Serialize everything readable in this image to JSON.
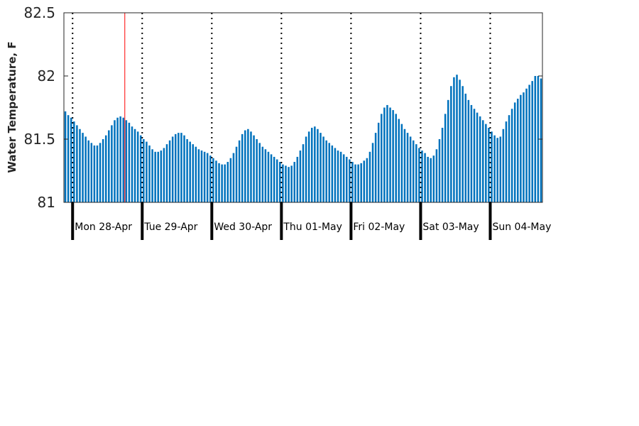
{
  "chart_data": {
    "type": "bar",
    "title": "",
    "xlabel": "",
    "ylabel": "Water Temperature, F",
    "ylim": [
      81,
      82.5
    ],
    "yticks": [
      "81",
      "81.5",
      "82",
      "82.5"
    ],
    "grid": false,
    "x_start": "2025-04-27 21:00",
    "x_interval_hours": 1,
    "day_labels": [
      "Mon 28-Apr",
      "Tue 29-Apr",
      "Wed 30-Apr",
      "Thu 01-May",
      "Fri 02-May",
      "Sat 03-May",
      "Sun 04-May"
    ],
    "current_time_marker": "2025-04-28 18:00",
    "colors": {
      "bar": "#0072BD",
      "current_time_line": "#FF0000",
      "day_boundary": "#000000"
    },
    "series": [
      {
        "values": [
          81.72,
          81.69,
          81.67,
          81.64,
          81.61,
          81.58,
          81.55,
          81.52,
          81.49,
          81.47,
          81.45,
          81.45,
          81.47,
          81.5,
          81.53,
          81.57,
          81.61,
          81.65,
          81.67,
          81.68,
          81.67,
          81.65,
          81.63,
          81.6,
          81.58,
          81.56,
          81.53,
          81.5,
          81.48,
          81.45,
          81.42,
          81.4,
          81.4,
          81.41,
          81.43,
          81.46,
          81.49,
          81.52,
          81.54,
          81.55,
          81.55,
          81.53,
          81.5,
          81.48,
          81.46,
          81.44,
          81.42,
          81.41,
          81.4,
          81.39,
          81.37,
          81.35,
          81.33,
          81.31,
          81.3,
          81.3,
          81.32,
          81.35,
          81.39,
          81.44,
          81.49,
          81.54,
          81.57,
          81.58,
          81.56,
          81.53,
          81.5,
          81.47,
          81.44,
          81.42,
          81.4,
          81.38,
          81.36,
          81.34,
          81.32,
          81.3,
          81.29,
          81.28,
          81.29,
          81.32,
          81.36,
          81.41,
          81.46,
          81.52,
          81.56,
          81.59,
          81.6,
          81.58,
          81.55,
          81.52,
          81.49,
          81.47,
          81.45,
          81.43,
          81.41,
          81.4,
          81.38,
          81.36,
          81.34,
          81.32,
          81.3,
          81.3,
          81.31,
          81.33,
          81.35,
          81.4,
          81.47,
          81.55,
          81.63,
          81.7,
          81.75,
          81.77,
          81.75,
          81.73,
          81.7,
          81.66,
          81.62,
          81.58,
          81.55,
          81.52,
          81.49,
          81.46,
          81.43,
          81.41,
          81.39,
          81.36,
          81.35,
          81.37,
          81.42,
          81.5,
          81.59,
          81.7,
          81.81,
          81.92,
          81.99,
          82.01,
          81.97,
          81.92,
          81.86,
          81.81,
          81.77,
          81.74,
          81.71,
          81.68,
          81.65,
          81.62,
          81.59,
          81.56,
          81.53,
          81.51,
          81.52,
          81.58,
          81.64,
          81.69,
          81.74,
          81.79,
          81.82,
          81.85,
          81.87,
          81.9,
          81.93,
          81.96,
          82.0,
          82.0,
          81.98
        ]
      }
    ]
  }
}
